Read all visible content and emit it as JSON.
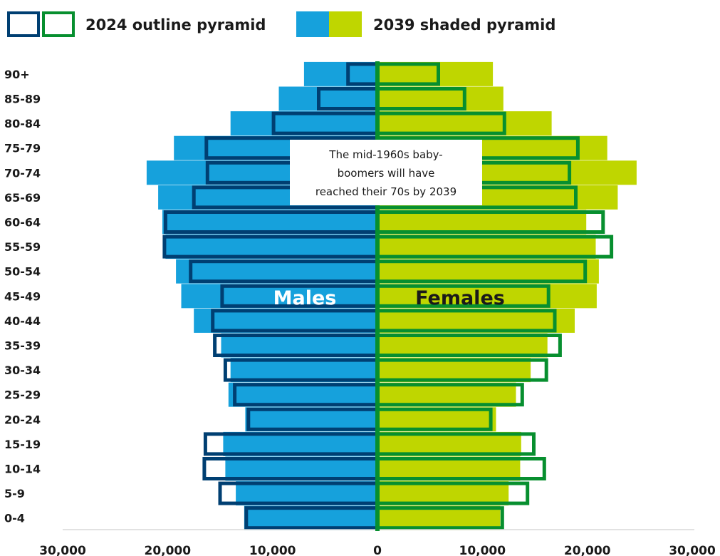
{
  "chart_data": {
    "type": "bar",
    "subtype": "population-pyramid",
    "categories": [
      "0-4",
      "5-9",
      "10-14",
      "15-19",
      "20-24",
      "25-29",
      "30-34",
      "35-39",
      "40-44",
      "45-49",
      "50-54",
      "55-59",
      "60-64",
      "65-69",
      "70-74",
      "75-79",
      "80-84",
      "85-89",
      "90+"
    ],
    "series": [
      {
        "name": "2039 shaded pyramid",
        "sex": "Males",
        "style": "shaded",
        "color": "#16a1dc",
        "values": [
          12700,
          13500,
          14500,
          14700,
          12600,
          14200,
          14000,
          14900,
          17500,
          18700,
          19200,
          20200,
          20500,
          20900,
          22000,
          19400,
          14000,
          9400,
          7000
        ]
      },
      {
        "name": "2039 shaded pyramid",
        "sex": "Females",
        "style": "shaded",
        "color": "#bfd600",
        "values": [
          11700,
          12500,
          13600,
          13700,
          11300,
          13200,
          14600,
          16200,
          18800,
          20900,
          21100,
          20800,
          19900,
          22900,
          24700,
          21900,
          16600,
          12000,
          11000
        ]
      },
      {
        "name": "2024 outline pyramid",
        "sex": "Males",
        "style": "outline",
        "color": "#003f72",
        "values": [
          12500,
          15000,
          16500,
          16400,
          12300,
          13600,
          14500,
          15500,
          15700,
          14800,
          17800,
          20300,
          20200,
          17500,
          16200,
          16300,
          9900,
          5600,
          2800
        ]
      },
      {
        "name": "2024 outline pyramid",
        "sex": "Females",
        "style": "outline",
        "color": "#078f2f",
        "values": [
          11900,
          14300,
          15900,
          14900,
          10800,
          13800,
          16100,
          17400,
          16900,
          16300,
          19800,
          22300,
          21500,
          18900,
          18300,
          19100,
          12100,
          8300,
          5800
        ]
      }
    ],
    "x_ticks": [
      "30,000",
      "20,000",
      "10,000",
      "0",
      "10,000",
      "20,000",
      "30,000"
    ],
    "xlim": [
      -30000,
      30000
    ],
    "grid": false,
    "legend": {
      "placement": "top",
      "entries": [
        "2024 outline pyramid",
        "2039 shaded pyramid"
      ]
    },
    "sex_labels": {
      "left": "Males",
      "right": "Females"
    },
    "annotation": {
      "lines": [
        "The mid-1960s baby-",
        "boomers will have",
        "reached their 70s by 2039"
      ],
      "position": "center"
    }
  },
  "colors": {
    "male_shaded": "#16a1dc",
    "female_shaded": "#bfd600",
    "male_outline": "#003f72",
    "female_outline": "#078f2f",
    "center_line": "#078f2f",
    "axis": "#d9d9d9"
  }
}
